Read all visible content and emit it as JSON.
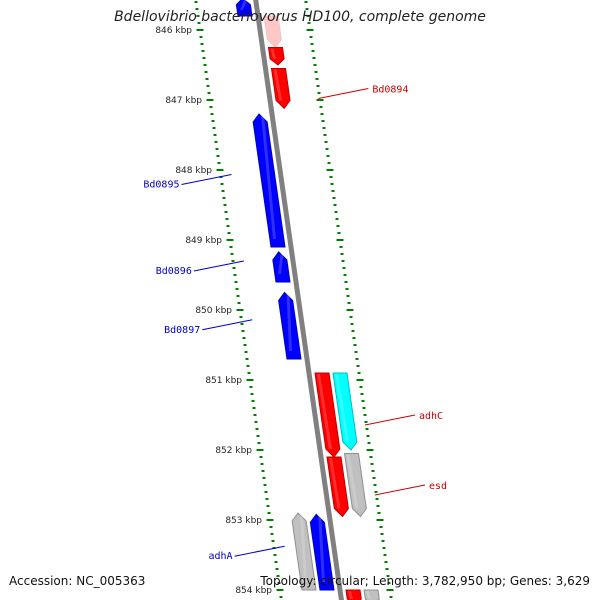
{
  "title": "Bdellovibrio bacteriovorus HD100, complete genome",
  "footer": {
    "accession": "Accession: NC_005363",
    "topology": "Topology: circular; Length: 3,782,950 bp; Genes: 3,629"
  },
  "colors": {
    "forward_gene": "#ff0000",
    "reverse_gene": "#0000ff",
    "rna_gene": "#00ffff",
    "other_gene": "#c0c0c0",
    "tick": "#008000",
    "backbone": "#808080"
  },
  "ticks": [
    {
      "label": "846 kbp",
      "kb": 846
    },
    {
      "label": "847 kbp",
      "kb": 847
    },
    {
      "label": "848 kbp",
      "kb": 848
    },
    {
      "label": "849 kbp",
      "kb": 849
    },
    {
      "label": "850 kbp",
      "kb": 850
    },
    {
      "label": "851 kbp",
      "kb": 851
    },
    {
      "label": "852 kbp",
      "kb": 852
    },
    {
      "label": "853 kbp",
      "kb": 853
    },
    {
      "label": "854 kbp",
      "kb": 854
    }
  ],
  "genes": [
    {
      "label": "",
      "strand": "reverse",
      "type": "cds",
      "start_kb": 845.55,
      "end_kb": 845.8
    },
    {
      "label": "",
      "strand": "forward",
      "type": "cds",
      "start_kb": 845.8,
      "end_kb": 846.25,
      "faded": true
    },
    {
      "label": "",
      "strand": "forward",
      "type": "cds",
      "start_kb": 846.25,
      "end_kb": 846.5
    },
    {
      "label": "Bd0894",
      "strand": "forward",
      "type": "cds",
      "start_kb": 846.55,
      "end_kb": 847.12
    },
    {
      "label": "Bd0895",
      "strand": "reverse",
      "type": "cds",
      "start_kb": 847.2,
      "end_kb": 849.1
    },
    {
      "label": "Bd0896",
      "strand": "reverse",
      "type": "cds",
      "start_kb": 849.17,
      "end_kb": 849.6
    },
    {
      "label": "Bd0897",
      "strand": "reverse",
      "type": "cds",
      "start_kb": 849.75,
      "end_kb": 850.7
    },
    {
      "label": "adhC",
      "strand": "forward",
      "type": "cds",
      "start_kb": 850.9,
      "end_kb": 852.1
    },
    {
      "label": "",
      "strand": "forward",
      "type": "rna",
      "start_kb": 850.9,
      "end_kb": 852.0
    },
    {
      "label": "",
      "strand": "forward",
      "type": "cds",
      "start_kb": 852.1,
      "end_kb": 852.95
    },
    {
      "label": "esd",
      "strand": "forward",
      "type": "other",
      "start_kb": 852.05,
      "end_kb": 852.95
    },
    {
      "label": "",
      "strand": "reverse",
      "type": "other",
      "start_kb": 852.9,
      "end_kb": 854.0
    },
    {
      "label": "adhA",
      "strand": "reverse",
      "type": "cds",
      "start_kb": 852.92,
      "end_kb": 854.0
    },
    {
      "label": "",
      "strand": "forward",
      "type": "cds",
      "start_kb": 854.0,
      "end_kb": 854.2
    },
    {
      "label": "",
      "strand": "forward",
      "type": "other",
      "start_kb": 854.0,
      "end_kb": 854.2
    }
  ]
}
